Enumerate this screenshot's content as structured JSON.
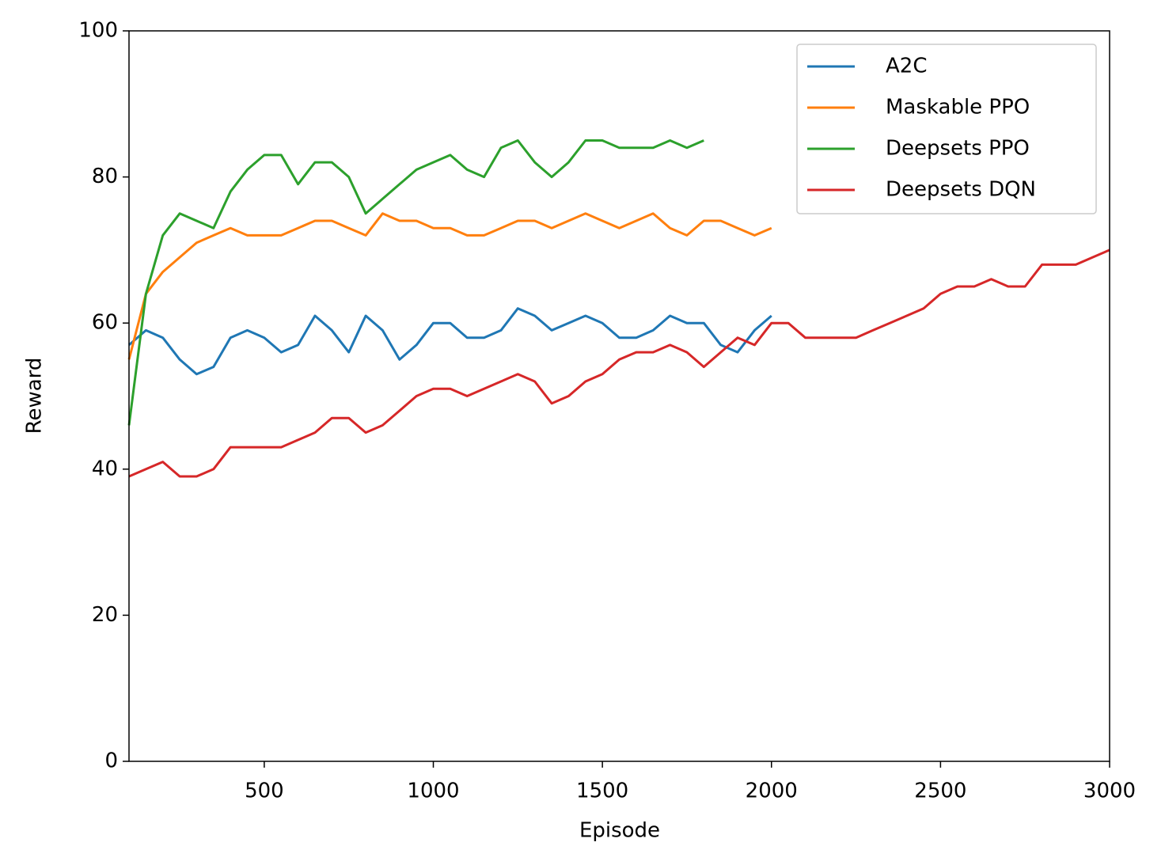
{
  "chart_data": {
    "type": "line",
    "x_label": "Episode",
    "y_label": "Reward",
    "x": [
      100,
      150,
      200,
      250,
      300,
      350,
      400,
      450,
      500,
      550,
      600,
      650,
      700,
      750,
      800,
      850,
      900,
      950,
      1000,
      1050,
      1100,
      1150,
      1200,
      1250,
      1300,
      1350,
      1400,
      1450,
      1500,
      1550,
      1600,
      1650,
      1700,
      1750,
      1800,
      1850,
      1900,
      1950,
      2000,
      2050,
      2100,
      2150,
      2200,
      2250,
      2300,
      2350,
      2400,
      2450,
      2500,
      2550,
      2600,
      2650,
      2700,
      2750,
      2800,
      2850,
      2900,
      2950,
      3000
    ],
    "series": [
      {
        "name": "A2C",
        "color": "#1f77b4",
        "values": [
          57,
          59,
          58,
          55,
          53,
          54,
          58,
          59,
          58,
          56,
          57,
          61,
          59,
          56,
          61,
          59,
          55,
          57,
          60,
          60,
          58,
          58,
          59,
          62,
          61,
          59,
          60,
          61,
          60,
          58,
          58,
          59,
          61,
          60,
          60,
          57,
          56,
          59,
          61,
          null,
          null,
          null,
          null,
          null,
          null,
          null,
          null,
          null,
          null,
          null,
          null,
          null,
          null,
          null,
          null,
          null,
          null,
          null,
          null
        ]
      },
      {
        "name": "Maskable PPO",
        "color": "#ff7f0e",
        "values": [
          55,
          64,
          67,
          69,
          71,
          72,
          73,
          72,
          72,
          72,
          73,
          74,
          74,
          73,
          72,
          75,
          74,
          74,
          73,
          73,
          72,
          72,
          73,
          74,
          74,
          73,
          74,
          75,
          74,
          73,
          74,
          75,
          73,
          72,
          74,
          74,
          73,
          72,
          73,
          null,
          null,
          null,
          null,
          null,
          null,
          null,
          null,
          null,
          null,
          null,
          null,
          null,
          null,
          null,
          null,
          null,
          null,
          null,
          null
        ]
      },
      {
        "name": "Deepsets PPO",
        "color": "#2ca02c",
        "values": [
          46,
          64,
          72,
          75,
          74,
          73,
          78,
          81,
          83,
          83,
          79,
          82,
          82,
          80,
          75,
          77,
          79,
          81,
          82,
          83,
          81,
          80,
          84,
          85,
          82,
          80,
          82,
          85,
          85,
          84,
          84,
          84,
          85,
          84,
          85,
          null,
          null,
          null,
          null,
          null,
          null,
          null,
          null,
          null,
          null,
          null,
          null,
          null,
          null,
          null,
          null,
          null,
          null,
          null,
          null,
          null,
          null,
          null,
          null
        ]
      },
      {
        "name": "Deepsets DQN",
        "color": "#d62728",
        "values": [
          39,
          40,
          41,
          39,
          39,
          40,
          43,
          43,
          43,
          43,
          44,
          45,
          47,
          47,
          45,
          46,
          48,
          50,
          51,
          51,
          50,
          51,
          52,
          53,
          52,
          49,
          50,
          52,
          53,
          55,
          56,
          56,
          57,
          56,
          54,
          56,
          58,
          57,
          60,
          60,
          58,
          58,
          58,
          58,
          59,
          60,
          61,
          62,
          64,
          65,
          65,
          66,
          65,
          65,
          68,
          68,
          68,
          69,
          70
        ]
      }
    ],
    "xlim": [
      100,
      3000
    ],
    "ylim": [
      0,
      100
    ],
    "xticks": [
      500,
      1000,
      1500,
      2000,
      2500,
      3000
    ],
    "yticks": [
      0,
      20,
      40,
      60,
      80,
      100
    ],
    "legend": "upper right"
  }
}
